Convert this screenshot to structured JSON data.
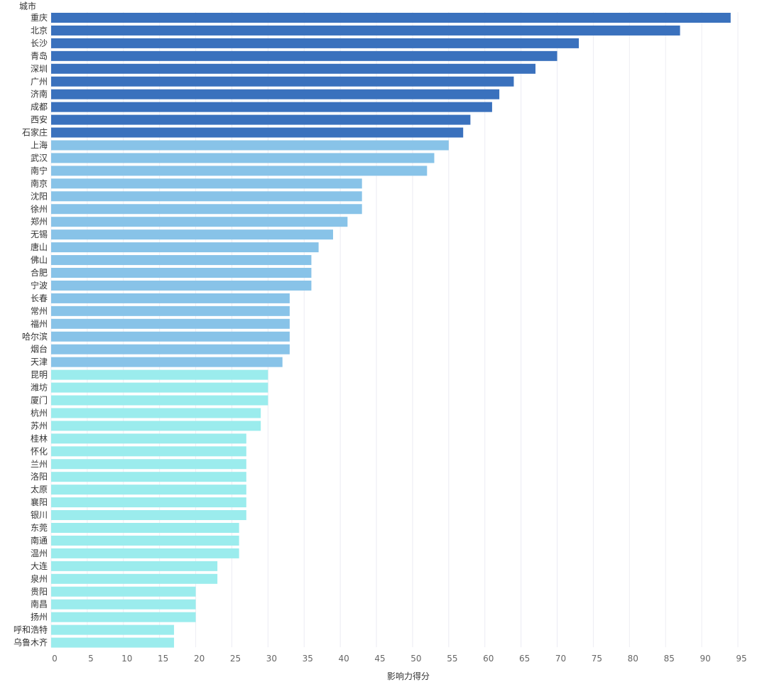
{
  "chart_data": {
    "type": "bar",
    "orientation": "horizontal",
    "ylabel": "城市",
    "xlabel": "影响力得分",
    "xlim": [
      0,
      95
    ],
    "xticks": [
      0,
      5,
      10,
      15,
      20,
      25,
      30,
      35,
      40,
      45,
      50,
      55,
      60,
      65,
      70,
      75,
      80,
      85,
      90,
      95
    ],
    "grid": true,
    "categories": [
      "重庆",
      "北京",
      "长沙",
      "青岛",
      "深圳",
      "广州",
      "济南",
      "成都",
      "西安",
      "石家庄",
      "上海",
      "武汉",
      "南宁",
      "南京",
      "沈阳",
      "徐州",
      "郑州",
      "无锡",
      "唐山",
      "佛山",
      "合肥",
      "宁波",
      "长春",
      "常州",
      "福州",
      "哈尔滨",
      "烟台",
      "天津",
      "昆明",
      "潍坊",
      "厦门",
      "杭州",
      "苏州",
      "桂林",
      "怀化",
      "兰州",
      "洛阳",
      "太原",
      "襄阳",
      "银川",
      "东莞",
      "南通",
      "温州",
      "大连",
      "泉州",
      "贵阳",
      "南昌",
      "扬州",
      "呼和浩特",
      "乌鲁木齐"
    ],
    "values": [
      94,
      87,
      73,
      70,
      67,
      64,
      62,
      61,
      58,
      57,
      55,
      53,
      52,
      43,
      43,
      43,
      41,
      39,
      37,
      36,
      36,
      36,
      33,
      33,
      33,
      33,
      33,
      32,
      30,
      30,
      30,
      29,
      29,
      27,
      27,
      27,
      27,
      27,
      27,
      27,
      26,
      26,
      26,
      23,
      23,
      20,
      20,
      20,
      17,
      17
    ],
    "colors": {
      "tier1": "#3a71bd",
      "tier2": "#88c3e8",
      "tier3": "#9beced",
      "grid": "#ececf3",
      "text": "#333333",
      "tick_text": "#666666"
    },
    "tier_counts": [
      10,
      18,
      22
    ]
  }
}
